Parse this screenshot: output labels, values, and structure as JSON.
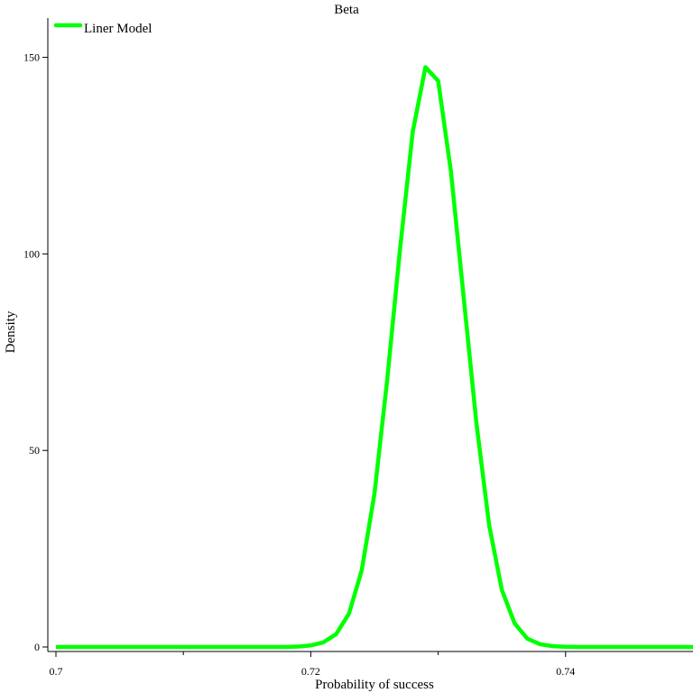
{
  "chart_data": {
    "type": "line",
    "title": "Beta",
    "xlabel": "Probability of success",
    "ylabel": "Density",
    "xlim": [
      0.7,
      0.75
    ],
    "ylim": [
      0,
      160
    ],
    "x_ticks": [
      0.7,
      0.72,
      0.74
    ],
    "x_tick_labels": [
      "0.7",
      "0.72",
      "0.74"
    ],
    "x_minor_ticks": [
      0.71,
      0.73
    ],
    "y_ticks": [
      0,
      50,
      100,
      150
    ],
    "y_tick_labels": [
      "0",
      "50",
      "100",
      "150"
    ],
    "grid": false,
    "legend": {
      "position": "top-left",
      "entries": [
        "Liner Model"
      ]
    },
    "series": [
      {
        "name": "Liner Model",
        "color": "#00ff00",
        "x": [
          0.7,
          0.701,
          0.702,
          0.703,
          0.704,
          0.705,
          0.706,
          0.707,
          0.708,
          0.709,
          0.71,
          0.711,
          0.712,
          0.713,
          0.714,
          0.715,
          0.716,
          0.717,
          0.718,
          0.719,
          0.72,
          0.721,
          0.722,
          0.723,
          0.724,
          0.725,
          0.726,
          0.727,
          0.728,
          0.729,
          0.73,
          0.731,
          0.732,
          0.733,
          0.734,
          0.735,
          0.736,
          0.737,
          0.738,
          0.739,
          0.74,
          0.741,
          0.742,
          0.743,
          0.744,
          0.745,
          0.746,
          0.747,
          0.748,
          0.749,
          0.75
        ],
        "values": [
          0,
          0,
          0,
          0,
          0,
          0,
          0,
          0,
          0,
          0,
          0,
          0,
          0,
          0,
          0,
          0,
          0,
          0,
          0,
          0.1,
          0.4,
          1.2,
          3.3,
          8.5,
          19.5,
          39,
          68,
          101,
          131,
          147.5,
          144,
          121,
          89,
          57,
          31,
          14.5,
          6,
          2.1,
          0.7,
          0.2,
          0.05,
          0,
          0,
          0,
          0,
          0,
          0,
          0,
          0,
          0,
          0
        ]
      }
    ]
  }
}
